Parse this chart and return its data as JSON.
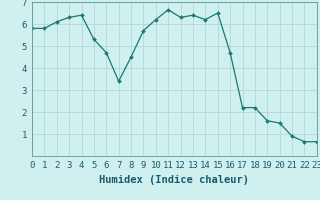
{
  "x": [
    0,
    1,
    2,
    3,
    4,
    5,
    6,
    7,
    8,
    9,
    10,
    11,
    12,
    13,
    14,
    15,
    16,
    17,
    18,
    19,
    20,
    21,
    22,
    23
  ],
  "y": [
    5.8,
    5.8,
    6.1,
    6.3,
    6.4,
    5.3,
    4.7,
    3.4,
    4.5,
    5.7,
    6.2,
    6.65,
    6.3,
    6.4,
    6.2,
    6.5,
    4.7,
    2.2,
    2.2,
    1.6,
    1.5,
    0.9,
    0.65,
    0.65
  ],
  "line_color": "#1a7a6e",
  "marker": "D",
  "marker_size": 2.0,
  "bg_color": "#d0f0f0",
  "grid_color": "#b0d8d8",
  "xlabel": "Humidex (Indice chaleur)",
  "xlim": [
    0,
    23
  ],
  "ylim": [
    0,
    7
  ],
  "yticks": [
    1,
    2,
    3,
    4,
    5,
    6,
    7
  ],
  "xticks": [
    0,
    1,
    2,
    3,
    4,
    5,
    6,
    7,
    8,
    9,
    10,
    11,
    12,
    13,
    14,
    15,
    16,
    17,
    18,
    19,
    20,
    21,
    22,
    23
  ],
  "tick_fontsize": 6.5,
  "xlabel_fontsize": 7.5
}
